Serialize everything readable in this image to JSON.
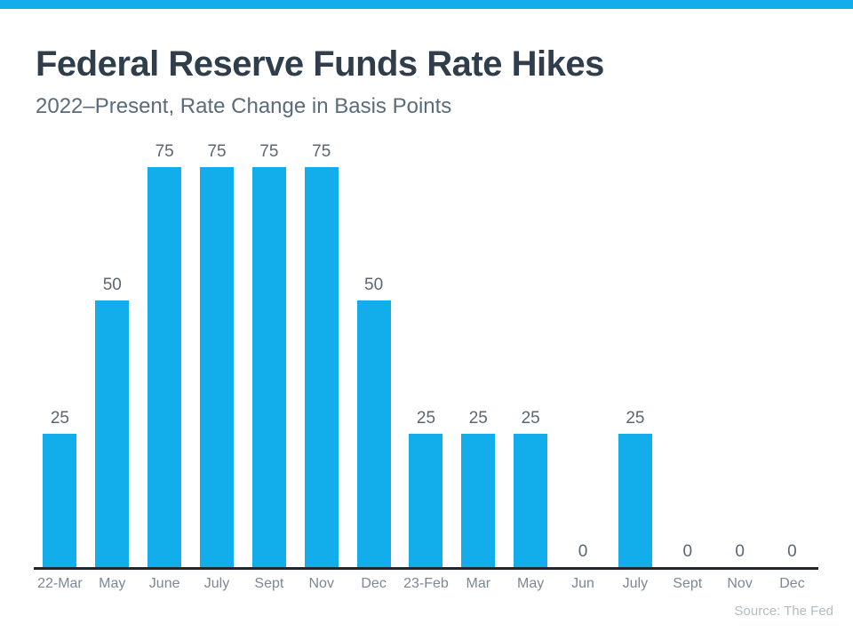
{
  "accent_color": "#12AEEC",
  "header": {
    "title": "Federal Reserve Funds Rate Hikes",
    "subtitle": "2022–Present, Rate Change in Basis Points"
  },
  "chart_data": {
    "type": "bar",
    "title": "Federal Reserve Funds Rate Hikes",
    "subtitle": "2022–Present, Rate Change in Basis Points",
    "categories": [
      "22-Mar",
      "May",
      "June",
      "July",
      "Sept",
      "Nov",
      "Dec",
      "23-Feb",
      "Mar",
      "May",
      "Jun",
      "July",
      "Sept",
      "Nov",
      "Dec"
    ],
    "values": [
      25,
      50,
      75,
      75,
      75,
      75,
      50,
      25,
      25,
      25,
      0,
      25,
      0,
      0,
      0
    ],
    "xlabel": "",
    "ylabel": "Rate Change in Basis Points",
    "ylim": [
      0,
      75
    ],
    "grid": false,
    "legend": false,
    "data_labels": true,
    "bar_color": "#12AEEC",
    "axis_line_color": "#20262C"
  },
  "footer": {
    "source": "Source: The Fed"
  }
}
